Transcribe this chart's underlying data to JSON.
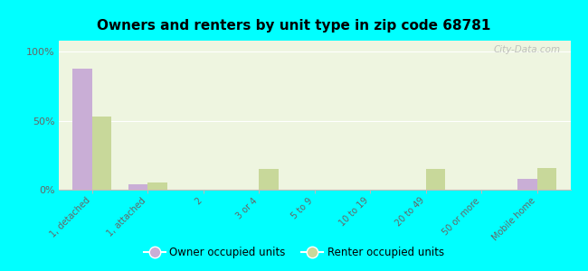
{
  "title": "Owners and renters by unit type in zip code 68781",
  "categories": [
    "1, detached",
    "1, attached",
    "2",
    "3 or 4",
    "5 to 9",
    "10 to 19",
    "20 to 49",
    "50 or more",
    "Mobile home"
  ],
  "owner_values": [
    88,
    4,
    0,
    0,
    0,
    0,
    0,
    0,
    8
  ],
  "renter_values": [
    53,
    5,
    0,
    15,
    0,
    0,
    15,
    0,
    16
  ],
  "owner_color": "#c9aed6",
  "renter_color": "#c8d89a",
  "background_color": "#00ffff",
  "plot_bg": "#eef5e0",
  "yticks": [
    0,
    50,
    100
  ],
  "ylim": [
    0,
    108
  ],
  "bar_width": 0.35,
  "legend_owner": "Owner occupied units",
  "legend_renter": "Renter occupied units",
  "watermark": "City-Data.com"
}
